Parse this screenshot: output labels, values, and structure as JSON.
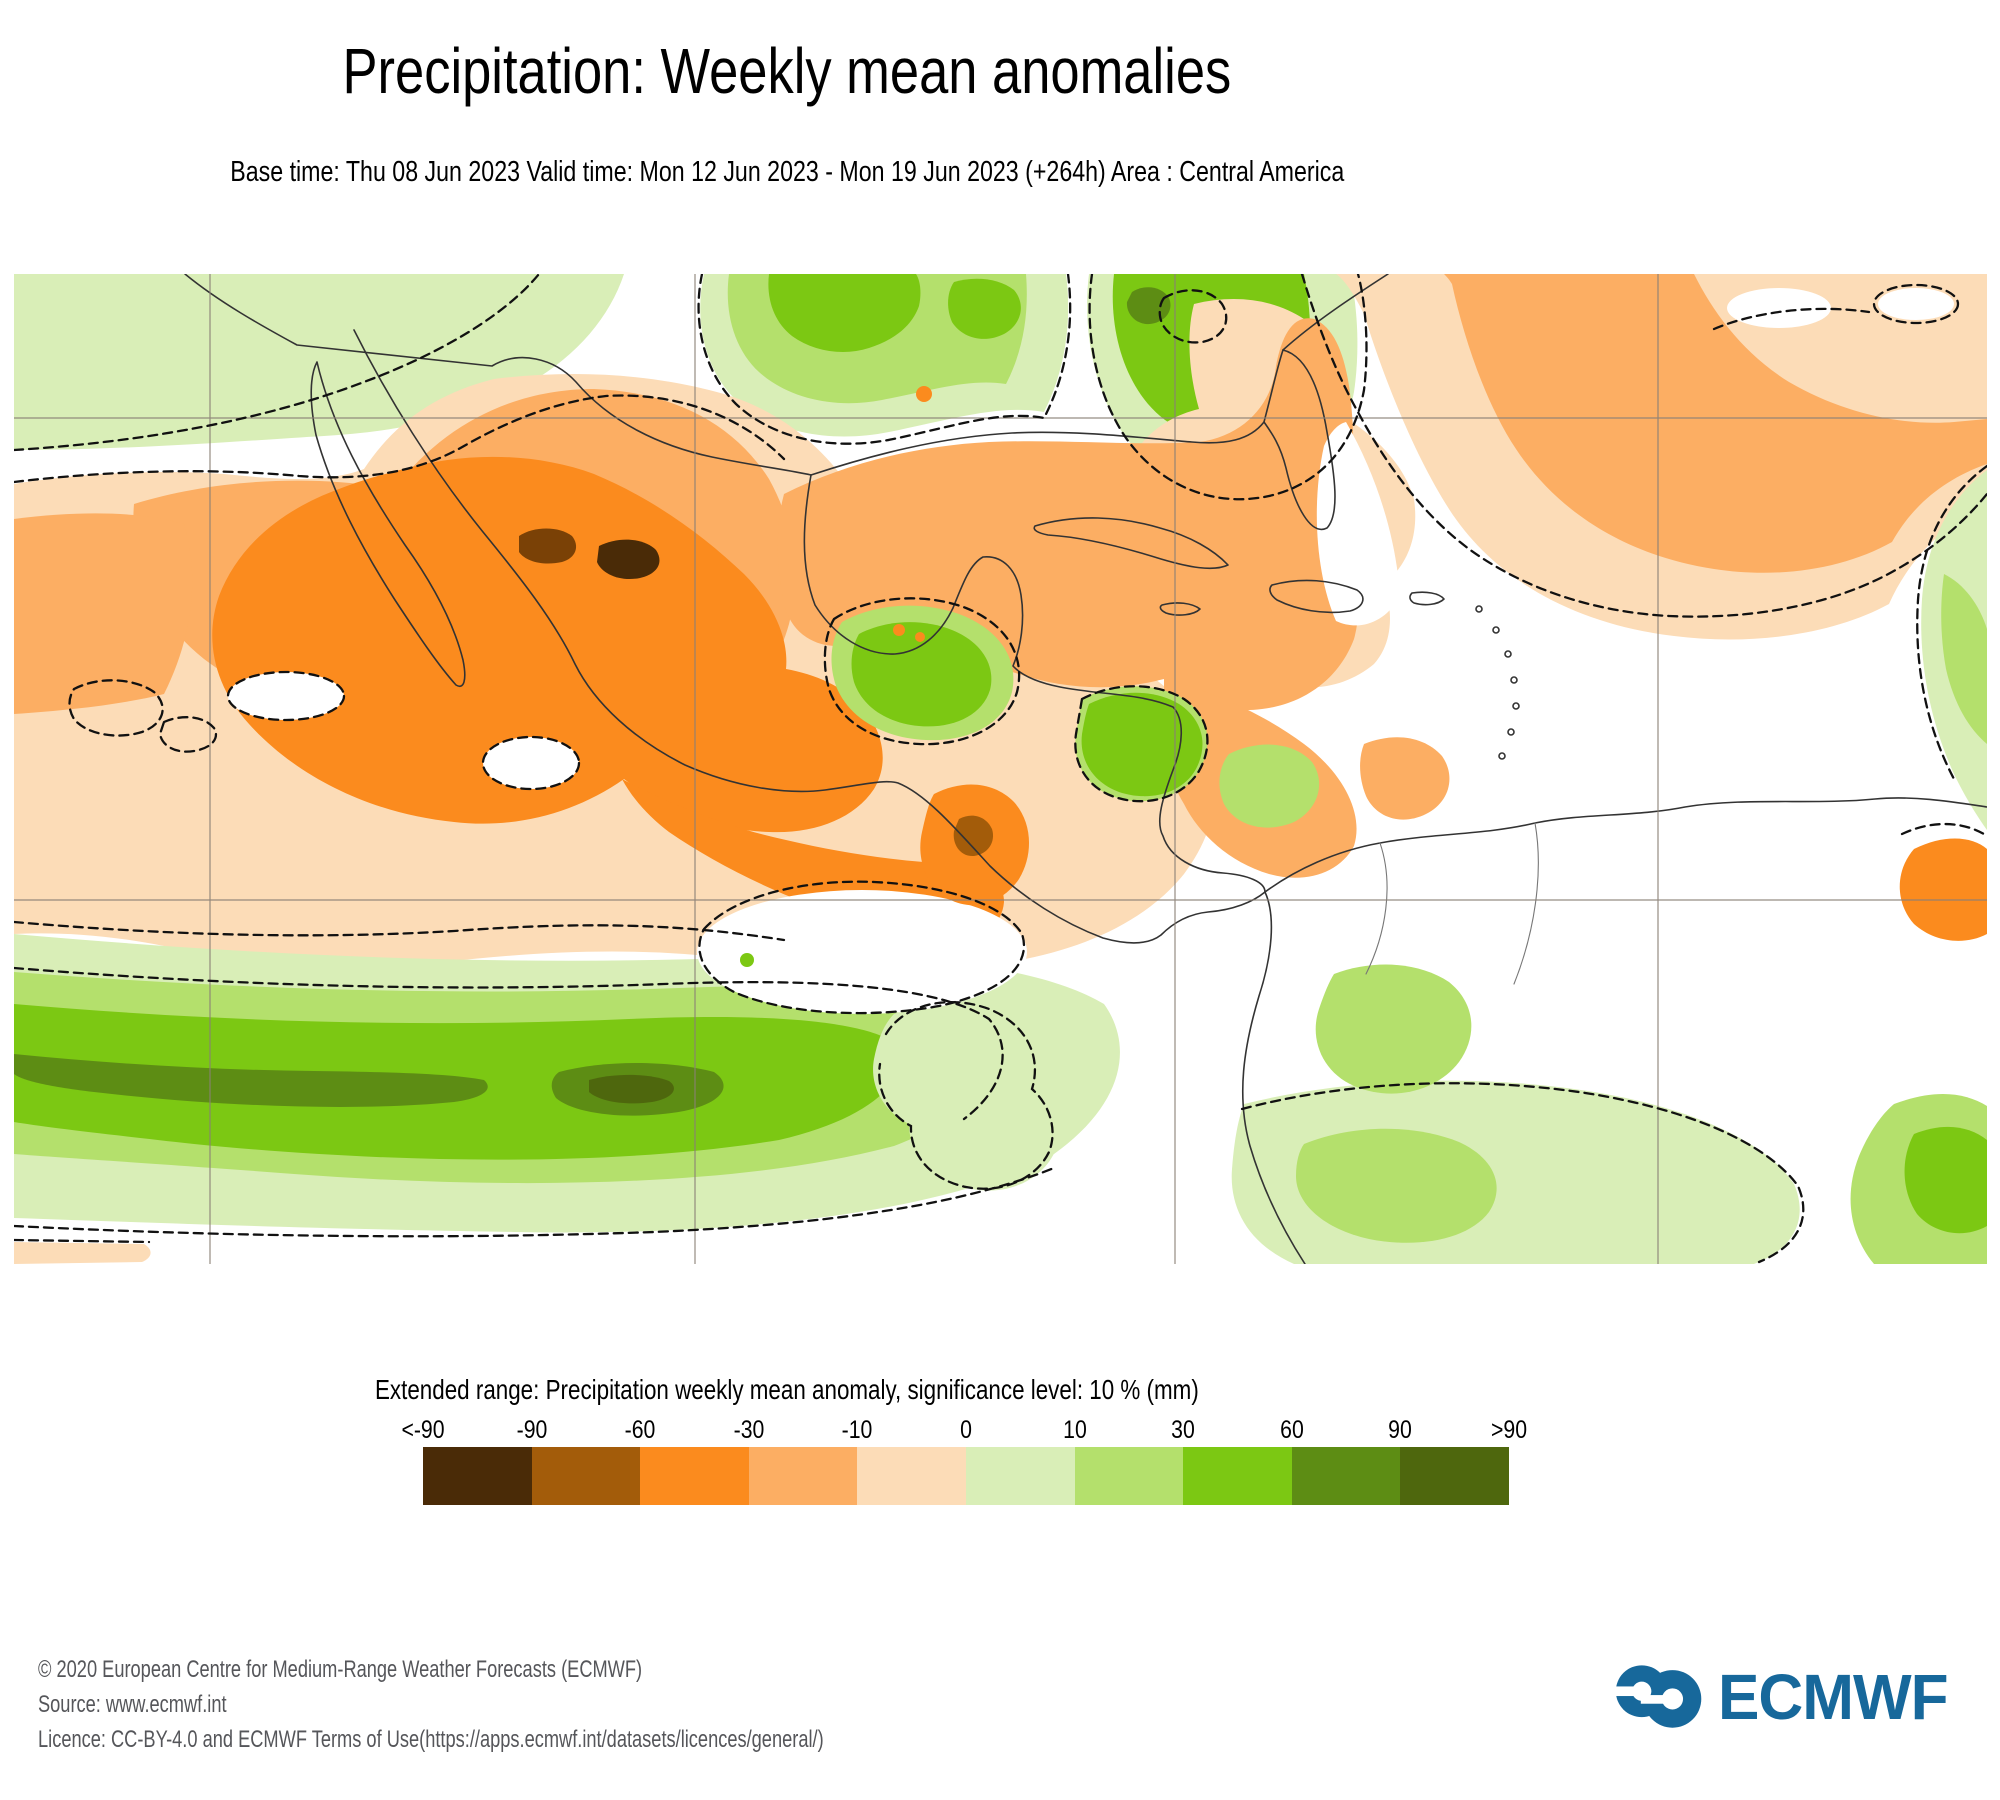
{
  "header": {
    "title": "Precipitation: Weekly mean anomalies",
    "subtitle": "Base time: Thu 08 Jun 2023 Valid time: Mon 12 Jun 2023 - Mon 19 Jun 2023 (+264h) Area : Central America"
  },
  "legend": {
    "title": "Extended range: Precipitation weekly mean anomaly, significance level: 10 % (mm)",
    "tick_labels": [
      "<-90",
      "-90",
      "-60",
      "-30",
      "-10",
      "0",
      "10",
      "30",
      "60",
      "90",
      ">90"
    ],
    "colors": [
      "#4a2b07",
      "#a35c0a",
      "#fb8b1e",
      "#fcae63",
      "#fcdcb7",
      "#d9eeb7",
      "#b4e06c",
      "#7cc813",
      "#5d8d14",
      "#4e670d"
    ]
  },
  "map": {
    "grid_color": "#8a8076",
    "coast_color": "#333333",
    "contour_color": "#111111",
    "background": "#ffffff"
  },
  "footer": {
    "lines": [
      "© 2020 European Centre for Medium-Range Weather Forecasts (ECMWF)",
      "Source: www.ecmwf.int",
      "Licence: CC-BY-4.0 and ECMWF Terms of Use(https://apps.ecmwf.int/datasets/licences/general/)"
    ]
  },
  "logo": {
    "text": "ECMWF",
    "color": "#17689b"
  }
}
